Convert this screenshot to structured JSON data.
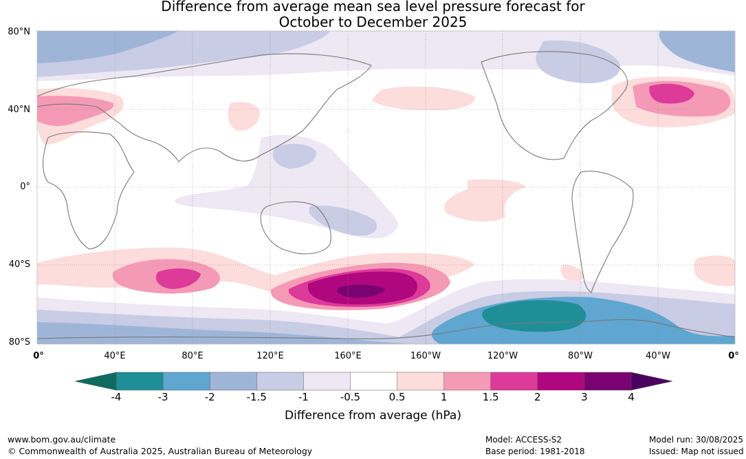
{
  "title": {
    "line1": "Difference from average mean sea level pressure forecast for",
    "line2": "October to December 2025"
  },
  "axes": {
    "latitude_labels": [
      "80°N",
      "40°N",
      "0°",
      "40°S",
      "80°S"
    ],
    "longitude_labels": [
      "0°",
      "40°E",
      "80°E",
      "120°E",
      "160°E",
      "160°W",
      "120°W",
      "80°W",
      "40°W",
      "0°"
    ]
  },
  "colorbar": {
    "label": "Difference from average (hPa)",
    "ticks": [
      "-4",
      "-3",
      "-2",
      "-1.5",
      "-1",
      "-0.5",
      "0.5",
      "1",
      "1.5",
      "2",
      "3",
      "4"
    ],
    "colors": {
      "below_min": "#0e6b5f",
      "bins": [
        "#1e8e97",
        "#5fa6d0",
        "#9fb5d8",
        "#c8cce4",
        "#ede8f3",
        "#ffffff",
        "#fddcdc",
        "#f59ab6",
        "#dd3a99",
        "#b0077f",
        "#7a0371"
      ],
      "above_max": "#4b0060"
    }
  },
  "footer": {
    "website": "www.bom.gov.au/climate",
    "copyright": "© Commonwealth of Australia 2025, Australian Bureau of Meteorology",
    "model": "Model: ACCESS-S2",
    "base_period": "Base period: 1981-2018",
    "model_run": "Model run: 30/08/2025",
    "issued": "Issued: Map not issued"
  }
}
